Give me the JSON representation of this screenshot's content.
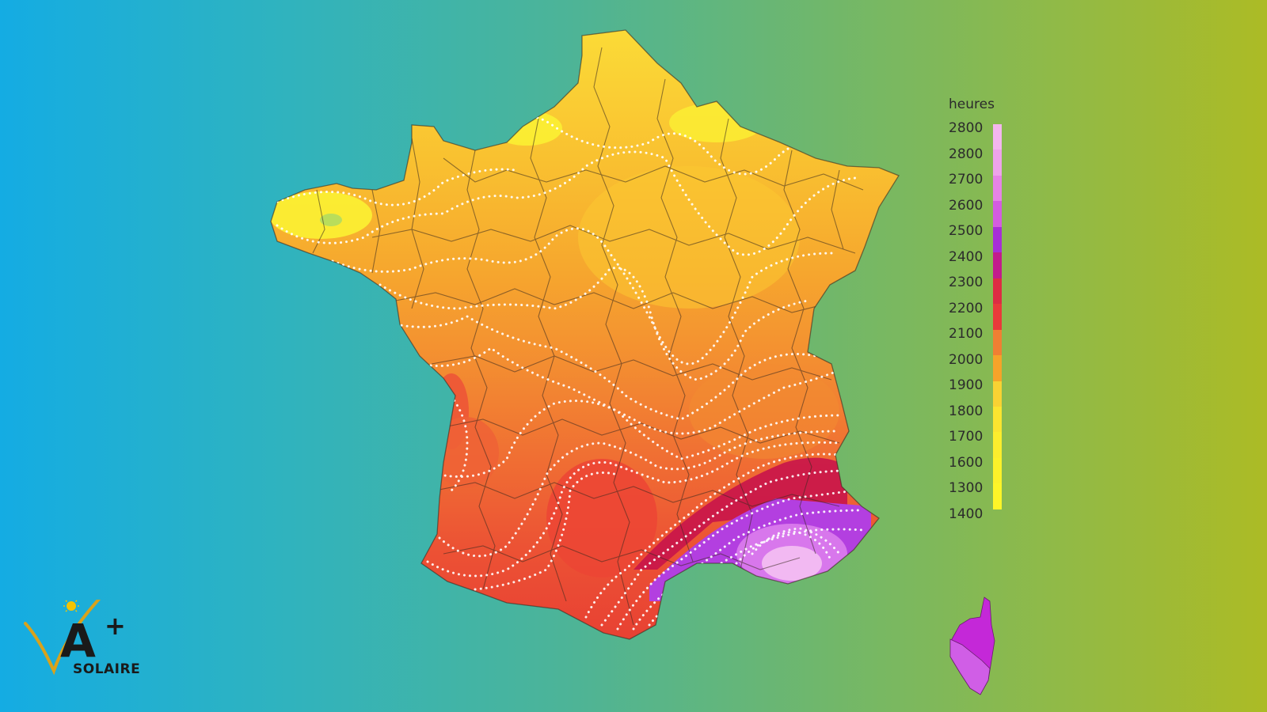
{
  "legend": {
    "title": "heures",
    "ticks": [
      "2800",
      "2800",
      "2700",
      "2600",
      "2500",
      "2400",
      "2300",
      "2200",
      "2100",
      "2000",
      "1900",
      "1800",
      "1700",
      "1600",
      "1300",
      "1400"
    ],
    "color_segments": [
      "#f4b6ee",
      "#eea3ea",
      "#e684e6",
      "#d45ce0",
      "#a72fd6",
      "#c21c8c",
      "#dd2c43",
      "#e93a3a",
      "#f07f33",
      "#f5a329",
      "#f8d233",
      "#fae430",
      "#fbed2d",
      "#fcf12a",
      "#fdf528"
    ]
  },
  "logo": {
    "brand": "A+",
    "subtitle": "SOLAIRE"
  },
  "map": {
    "unit": "heures"
  }
}
